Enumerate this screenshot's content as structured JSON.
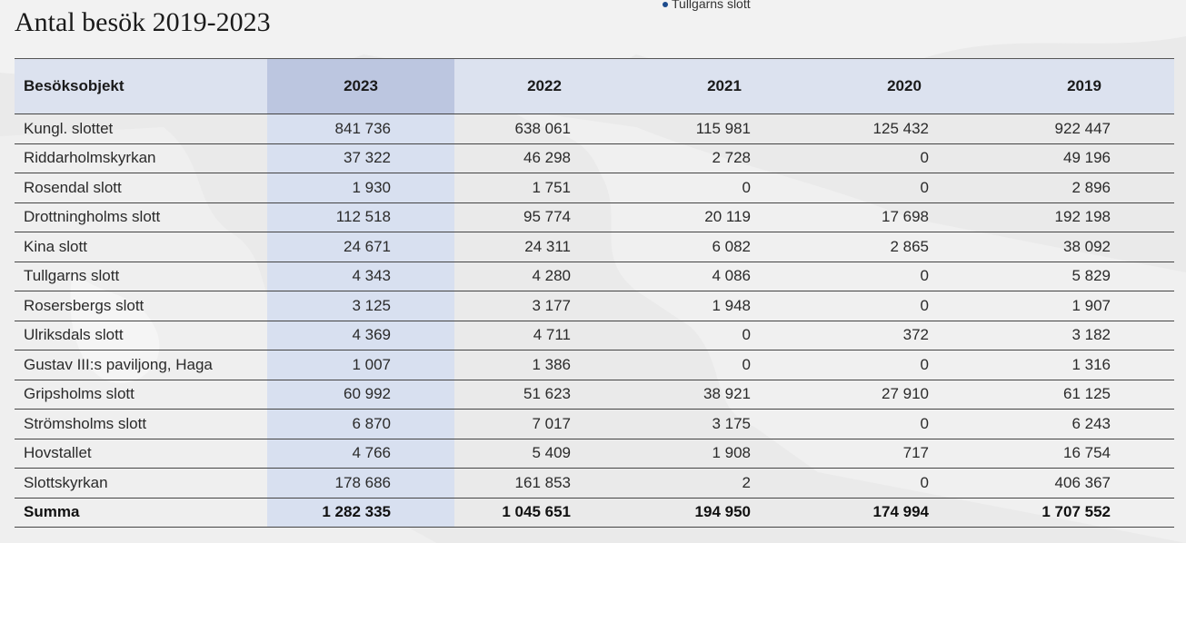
{
  "page": {
    "title": "Antal besök 2019-2023",
    "map_label": "Tullgarns slott"
  },
  "table": {
    "headers": [
      "Besöksobjekt",
      "2023",
      "2022",
      "2021",
      "2020",
      "2019"
    ],
    "rows": [
      {
        "name": "Kungl. slottet",
        "v2023": "841 736",
        "v2022": "638 061",
        "v2021": "115 981",
        "v2020": "125 432",
        "v2019": "922 447"
      },
      {
        "name": "Riddarholmskyrkan",
        "v2023": "37 322",
        "v2022": "46 298",
        "v2021": "2 728",
        "v2020": "0",
        "v2019": "49 196"
      },
      {
        "name": "Rosendal slott",
        "v2023": "1 930",
        "v2022": "1 751",
        "v2021": "0",
        "v2020": "0",
        "v2019": "2 896"
      },
      {
        "name": "Drottningholms slott",
        "v2023": "112 518",
        "v2022": "95 774",
        "v2021": "20 119",
        "v2020": "17 698",
        "v2019": "192 198"
      },
      {
        "name": "Kina slott",
        "v2023": "24 671",
        "v2022": "24 311",
        "v2021": "6 082",
        "v2020": "2 865",
        "v2019": "38 092"
      },
      {
        "name": "Tullgarns slott",
        "v2023": "4 343",
        "v2022": "4 280",
        "v2021": "4 086",
        "v2020": "0",
        "v2019": "5 829"
      },
      {
        "name": "Rosersbergs slott",
        "v2023": "3 125",
        "v2022": "3 177",
        "v2021": "1 948",
        "v2020": "0",
        "v2019": "1 907"
      },
      {
        "name": "Ulriksdals slott",
        "v2023": "4 369",
        "v2022": "4 711",
        "v2021": "0",
        "v2020": "372",
        "v2019": "3 182"
      },
      {
        "name": "Gustav III:s paviljong, Haga",
        "v2023": "1 007",
        "v2022": "1 386",
        "v2021": "0",
        "v2020": "0",
        "v2019": "1 316"
      },
      {
        "name": "Gripsholms slott",
        "v2023": "60 992",
        "v2022": "51 623",
        "v2021": "38 921",
        "v2020": "27 910",
        "v2019": "61 125"
      },
      {
        "name": "Strömsholms slott",
        "v2023": "6 870",
        "v2022": "7 017",
        "v2021": "3 175",
        "v2020": "0",
        "v2019": "6 243"
      },
      {
        "name": "Hovstallet",
        "v2023": "4 766",
        "v2022": "5 409",
        "v2021": "1 908",
        "v2020": "717",
        "v2019": "16 754"
      },
      {
        "name": "Slottskyrkan",
        "v2023": "178 686",
        "v2022": "161 853",
        "v2021": "2",
        "v2020": "0",
        "v2019": "406 367"
      }
    ],
    "total": {
      "name": "Summa",
      "v2023": "1 282 335",
      "v2022": "1 045 651",
      "v2021": "194 950",
      "v2020": "174 994",
      "v2019": "1 707 552"
    }
  },
  "colors": {
    "header_bg": "#dce2ef",
    "highlight_column": "#bcc6e0",
    "map_marker": "#1c4b8c"
  }
}
